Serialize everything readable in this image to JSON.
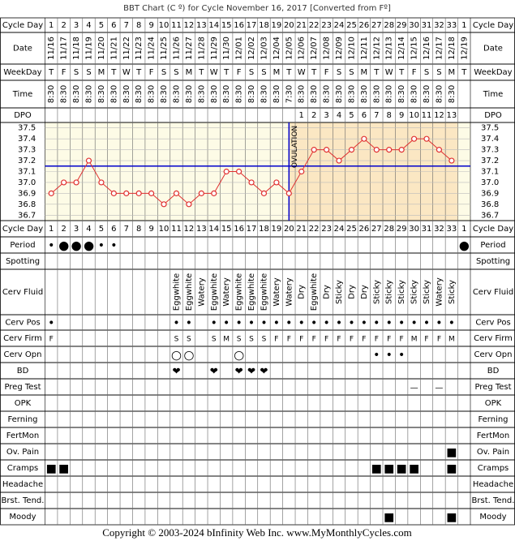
{
  "title": "BBT Chart (C º) for Cycle November 16, 2017  [Converted from Fº]",
  "row_labels": [
    "Cycle Day",
    "Date",
    "WeekDay",
    "Time",
    "DPO"
  ],
  "chart_data": {
    "type": "line",
    "cycle_days": [
      1,
      2,
      3,
      4,
      5,
      6,
      7,
      8,
      9,
      10,
      11,
      12,
      13,
      14,
      15,
      16,
      17,
      18,
      19,
      20,
      21,
      22,
      23,
      24,
      25,
      26,
      27,
      28,
      29,
      30,
      31,
      32,
      33,
      1
    ],
    "dates": [
      "11/16",
      "11/17",
      "11/18",
      "11/19",
      "11/20",
      "11/21",
      "11/22",
      "11/23",
      "11/24",
      "11/25",
      "11/26",
      "11/27",
      "11/28",
      "11/29",
      "11/30",
      "12/01",
      "12/02",
      "12/03",
      "12/04",
      "12/05",
      "12/06",
      "12/07",
      "12/08",
      "12/09",
      "12/10",
      "12/11",
      "12/12",
      "12/13",
      "12/14",
      "12/15",
      "12/16",
      "12/17",
      "12/18",
      "12/19"
    ],
    "weekdays": [
      "T",
      "F",
      "S",
      "S",
      "M",
      "T",
      "W",
      "T",
      "F",
      "S",
      "S",
      "M",
      "T",
      "W",
      "T",
      "F",
      "S",
      "S",
      "M",
      "T",
      "W",
      "T",
      "F",
      "S",
      "S",
      "M",
      "T",
      "W",
      "T",
      "F",
      "S",
      "S",
      "M",
      "T"
    ],
    "times": [
      "8:30",
      "8:30",
      "8:30",
      "8:30",
      "8:30",
      "8:30",
      "8:30",
      "8:30",
      "8:30",
      "8:30",
      "8:30",
      "8:30",
      "8:30",
      "8:30",
      "8:30",
      "8:30",
      "8:30",
      "8:30",
      "8:30",
      "7:30",
      "8:30",
      "8:30",
      "8:30",
      "8:30",
      "8:30",
      "8:30",
      "8:30",
      "8:30",
      "8:30",
      "8:30",
      "8:30",
      "8:30",
      "8:30",
      null
    ],
    "dpo": [
      null,
      null,
      null,
      null,
      null,
      null,
      null,
      null,
      null,
      null,
      null,
      null,
      null,
      null,
      null,
      null,
      null,
      null,
      null,
      null,
      1,
      2,
      3,
      4,
      5,
      6,
      7,
      8,
      9,
      10,
      11,
      12,
      13,
      null
    ],
    "values": [
      36.9,
      37.0,
      37.0,
      37.2,
      37.0,
      36.9,
      36.9,
      36.9,
      36.9,
      36.8,
      36.9,
      36.8,
      36.9,
      36.9,
      37.1,
      37.1,
      37.0,
      36.9,
      37.0,
      36.9,
      37.1,
      37.3,
      37.3,
      37.2,
      37.3,
      37.4,
      37.3,
      37.3,
      37.3,
      37.4,
      37.4,
      37.3,
      37.2,
      null
    ],
    "color": "#e03030",
    "ylim": [
      36.65,
      37.55
    ],
    "yticks": [
      37.5,
      37.4,
      37.3,
      37.2,
      37.1,
      {
        "value": 37.0,
        "label": "37.0"
      },
      36.9,
      36.8,
      36.7
    ],
    "coverline": 37.15,
    "coverline_color": "#0000cc",
    "ovulation_day": 20,
    "ovulation_label": "OVULATION"
  },
  "observations": [
    {
      "label": "Period",
      "color": "#e020e0",
      "marks": [
        "•",
        "●",
        "●",
        "●",
        "•",
        "•",
        null,
        null,
        null,
        null,
        null,
        null,
        null,
        null,
        null,
        null,
        null,
        null,
        null,
        null,
        null,
        null,
        null,
        null,
        null,
        null,
        null,
        null,
        null,
        null,
        null,
        null,
        null,
        "●"
      ]
    },
    {
      "label": "Spotting"
    },
    {
      "label": "Cerv Fluid",
      "color": "#000000",
      "marks": [
        null,
        null,
        null,
        null,
        null,
        null,
        null,
        null,
        null,
        null,
        "Eggwhite",
        "Eggwhite",
        "Watery",
        "Eggwhite",
        "Watery",
        "Eggwhite",
        "Eggwhite",
        "Eggwhite",
        "Watery",
        "Watery",
        "Dry",
        "Eggwhite",
        "Dry",
        "Sticky",
        "Dry",
        "Dry",
        "Sticky",
        "Sticky",
        "Sticky",
        "Sticky",
        "Sticky",
        "Watery",
        "Sticky",
        null
      ]
    },
    {
      "label": "Cerv Pos",
      "color": "#9966cc",
      "marks": [
        "•",
        null,
        null,
        null,
        null,
        null,
        null,
        null,
        null,
        null,
        "•",
        "•",
        null,
        "•",
        "•",
        "•",
        "•",
        "•",
        "•",
        "•",
        "•",
        "•",
        "•",
        "•",
        "•",
        "•",
        "•",
        "•",
        "•",
        "•",
        "•",
        "•",
        "•",
        null
      ]
    },
    {
      "label": "Cerv Firm",
      "color": "#9966cc",
      "marks": [
        "F",
        null,
        null,
        null,
        null,
        null,
        null,
        null,
        null,
        null,
        "S",
        "S",
        null,
        "S",
        "M",
        "S",
        "S",
        "S",
        "F",
        "F",
        "F",
        "F",
        "F",
        "F",
        "F",
        "F",
        "F",
        "F",
        "F",
        "M",
        "F",
        "F",
        "M",
        null
      ]
    },
    {
      "label": "Cerv Opn",
      "color": "#c87878",
      "marks": [
        null,
        null,
        null,
        null,
        null,
        null,
        null,
        null,
        null,
        null,
        "○",
        "○",
        null,
        null,
        null,
        "○",
        null,
        null,
        null,
        null,
        null,
        null,
        null,
        null,
        null,
        null,
        "•",
        "•",
        "•",
        null,
        null,
        null,
        null,
        null
      ]
    },
    {
      "label": "BD",
      "color": "#e0207a",
      "marks": [
        null,
        null,
        null,
        null,
        null,
        null,
        null,
        null,
        null,
        null,
        "❤",
        null,
        null,
        "❤",
        null,
        "❤",
        "❤",
        "❤",
        null,
        null,
        null,
        null,
        null,
        null,
        null,
        null,
        null,
        null,
        null,
        null,
        null,
        null,
        null,
        null
      ]
    },
    {
      "label": "Preg Test",
      "color": "#5050b0",
      "marks": [
        null,
        null,
        null,
        null,
        null,
        null,
        null,
        null,
        null,
        null,
        null,
        null,
        null,
        null,
        null,
        null,
        null,
        null,
        null,
        null,
        null,
        null,
        null,
        null,
        null,
        null,
        null,
        null,
        null,
        "—",
        null,
        "—",
        null,
        null
      ]
    },
    {
      "label": "OPK"
    },
    {
      "label": "Ferning"
    },
    {
      "label": "FertMon"
    },
    {
      "label": "Ov. Pain",
      "color": "#55cc55",
      "marks": [
        null,
        null,
        null,
        null,
        null,
        null,
        null,
        null,
        null,
        null,
        null,
        null,
        null,
        null,
        null,
        null,
        null,
        null,
        null,
        null,
        null,
        null,
        null,
        null,
        null,
        null,
        null,
        null,
        null,
        null,
        null,
        null,
        "■",
        null
      ]
    },
    {
      "label": "Cramps",
      "colors": [
        "#55cc55",
        "#b03a8c",
        null,
        null,
        null,
        null,
        null,
        null,
        null,
        null,
        null,
        null,
        null,
        null,
        null,
        null,
        null,
        null,
        null,
        null,
        null,
        null,
        null,
        null,
        null,
        null,
        "#4a6ad0",
        "#55cc55",
        "#55cc55",
        "#b03a8c",
        null,
        null,
        "#55cc55",
        null
      ],
      "marks": [
        "■",
        "■",
        null,
        null,
        null,
        null,
        null,
        null,
        null,
        null,
        null,
        null,
        null,
        null,
        null,
        null,
        null,
        null,
        null,
        null,
        null,
        null,
        null,
        null,
        null,
        null,
        "■",
        "■",
        "■",
        "■",
        null,
        null,
        "■",
        null
      ]
    },
    {
      "label": "Headache"
    },
    {
      "label": "Brst. Tend."
    },
    {
      "label": "Moody",
      "colors": [
        null,
        null,
        null,
        null,
        null,
        null,
        null,
        null,
        null,
        null,
        null,
        null,
        null,
        null,
        null,
        null,
        null,
        null,
        null,
        null,
        null,
        null,
        null,
        null,
        null,
        null,
        null,
        "#b03a8c",
        null,
        null,
        null,
        null,
        "#55cc55",
        null
      ],
      "marks": [
        null,
        null,
        null,
        null,
        null,
        null,
        null,
        null,
        null,
        null,
        null,
        null,
        null,
        null,
        null,
        null,
        null,
        null,
        null,
        null,
        null,
        null,
        null,
        null,
        null,
        null,
        null,
        "■",
        null,
        null,
        null,
        null,
        "■",
        null
      ]
    }
  ],
  "copyright": "Copyright © 2003-2024 bInfinity Web Inc.     www.MyMonthlyCycles.com"
}
